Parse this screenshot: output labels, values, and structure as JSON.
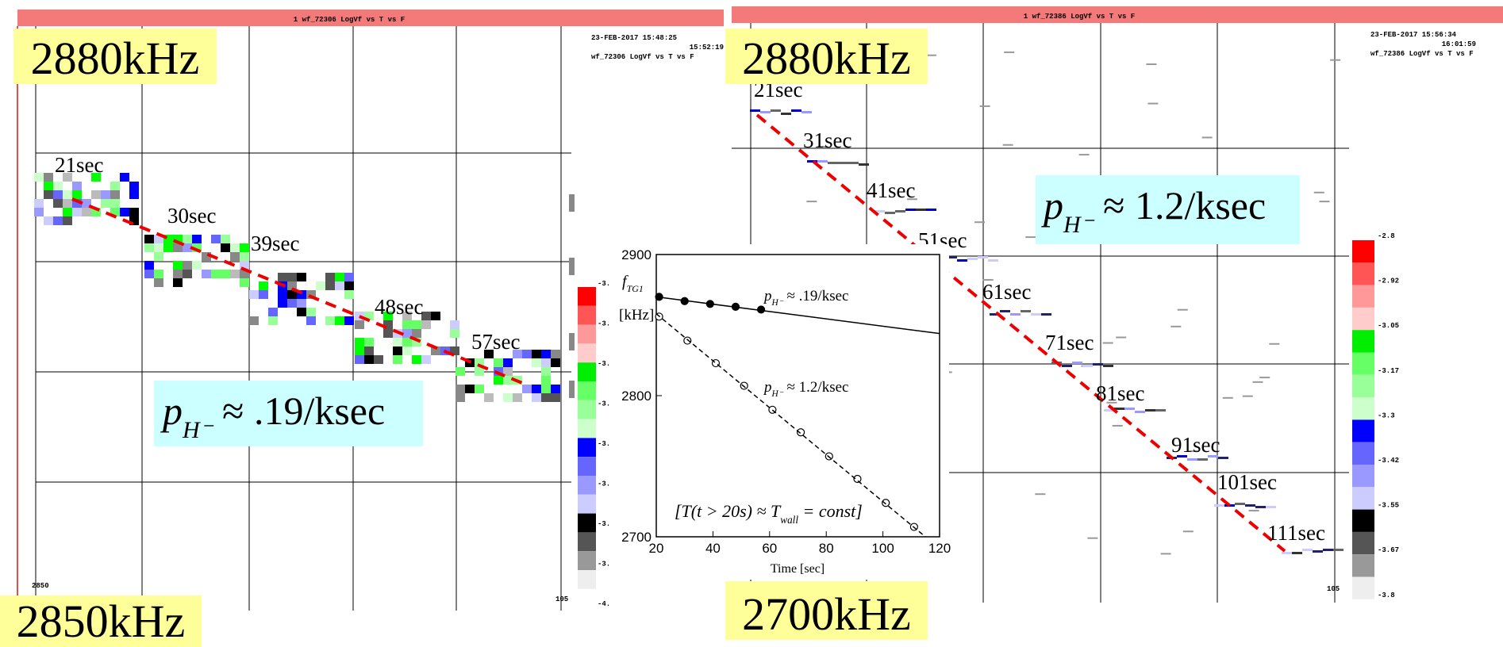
{
  "panels": [
    {
      "title": "1  wf_72306  LogVf vs T vs F",
      "stamp": [
        "23-FEB-2017 15:48:25",
        "15:52:19",
        "wf_72306   LogVf vs T vs F"
      ],
      "top_freq": "2880kHz",
      "bottom_freq": "2850kHz",
      "corner_left": "2850",
      "corner_right": "105",
      "colorbar_labels": [
        "-3.",
        "-3.",
        "-3.",
        "-3.",
        "-3.",
        "-3.",
        "-3.",
        "-3.",
        "-4."
      ],
      "time_labels": [
        "21sec",
        "30sec",
        "39sec",
        "48sec",
        "57sec"
      ],
      "rate": [
        "p",
        "H⁻",
        " ≈ .19/ksec"
      ]
    },
    {
      "title": "1  wf_72386  LogVf vs T vs F",
      "stamp": [
        "23-FEB-2017 15:56:34",
        "16:01:59",
        "wf_72386   LogVf vs T vs F"
      ],
      "top_freq": "2880kHz",
      "bottom_freq": "2700kHz",
      "corner_right": "105",
      "colorbar_labels": [
        "-2.8",
        "-2.92",
        "-3.05",
        "-3.17",
        "-3.3",
        "-3.42",
        "-3.55",
        "-3.67",
        "-3.8"
      ],
      "time_labels": [
        "21sec",
        "31sec",
        "41sec",
        "51sec",
        "61sec",
        "71sec",
        "81sec",
        "91sec",
        "101sec",
        "111sec"
      ],
      "rate": [
        "p",
        "H⁻",
        " ≈ 1.2/ksec"
      ]
    }
  ],
  "chart_data": {
    "type": "line",
    "ylabel": [
      "f",
      "TG1"
    ],
    "ylabel_unit": "[kHz]",
    "xlabel": "Time  [sec]",
    "xlim": [
      20,
      120
    ],
    "xticks": [
      20,
      40,
      60,
      80,
      100,
      120
    ],
    "ylim": [
      2700,
      2900
    ],
    "yticks": [
      2700,
      2800,
      2900
    ],
    "series": [
      {
        "x": [
          21,
          30,
          39,
          48,
          57
        ],
        "values": [
          2870,
          2867,
          2865,
          2863,
          2861
        ],
        "marker": "filled",
        "color": "#000000"
      },
      {
        "x": [
          21,
          31,
          41,
          51,
          61,
          71,
          81,
          91,
          101,
          111
        ],
        "values": [
          2856,
          2839,
          2823,
          2807,
          2790,
          2774,
          2757,
          2741,
          2724,
          2707
        ],
        "marker": "open",
        "color": "#000000"
      },
      {
        "x": [
          20,
          120
        ],
        "values": [
          2870,
          2844
        ],
        "style": "solid",
        "color": "#000000"
      },
      {
        "x": [
          20,
          115
        ],
        "values": [
          2858,
          2700
        ],
        "style": "dashed",
        "color": "#000000"
      }
    ],
    "annotations": [
      [
        "p",
        "H⁻",
        " ≈ .19/ksec"
      ],
      [
        "p",
        "H⁻",
        " ≈ 1.2/ksec"
      ],
      [
        "[T(t > 20s) ≈ T",
        "wall",
        " = const]"
      ]
    ]
  }
}
